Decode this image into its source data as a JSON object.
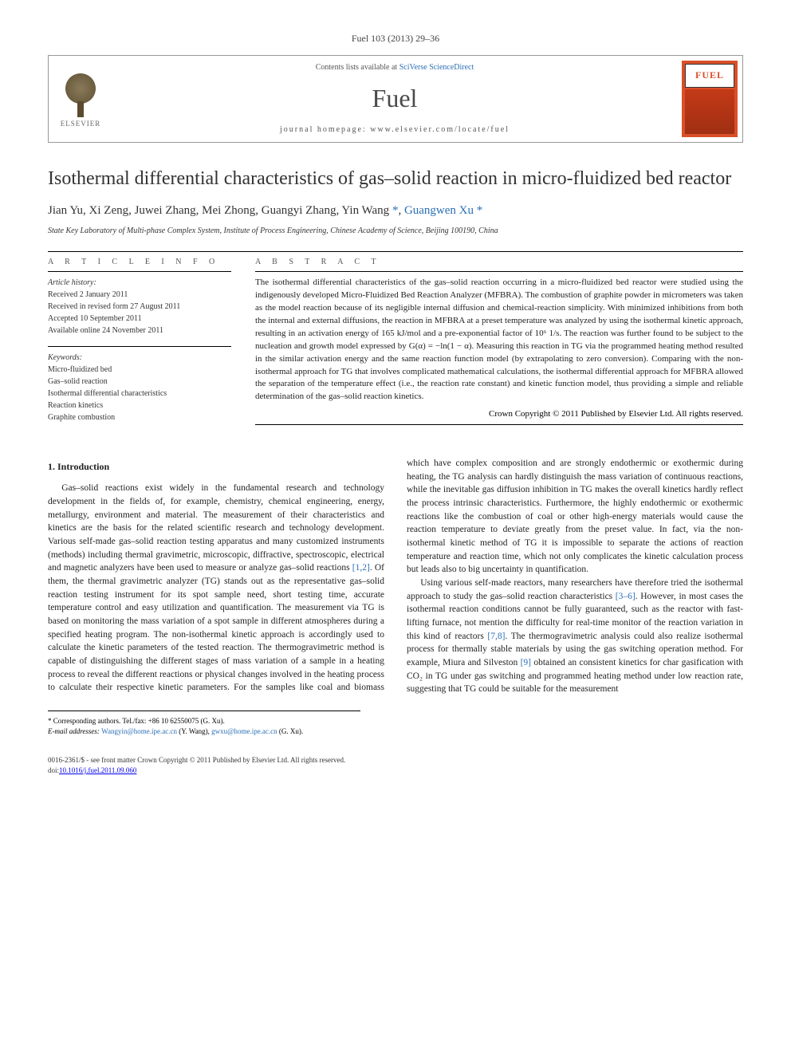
{
  "journal_ref": "Fuel 103 (2013) 29–36",
  "header": {
    "contents_prefix": "Contents lists available at ",
    "contents_link": "SciVerse ScienceDirect",
    "journal_name": "Fuel",
    "homepage_prefix": "journal homepage: ",
    "homepage_url": "www.elsevier.com/locate/fuel",
    "publisher": "ELSEVIER",
    "cover_label": "FUEL"
  },
  "title": "Isothermal differential characteristics of gas–solid reaction in micro-fluidized bed reactor",
  "authors": "Jian Yu, Xi Zeng, Juwei Zhang, Mei Zhong, Guangyi Zhang, Yin Wang *, Guangwen Xu *",
  "affiliation": "State Key Laboratory of Multi-phase Complex System, Institute of Process Engineering, Chinese Academy of Science, Beijing 100190, China",
  "info": {
    "heading_info": "A R T I C L E   I N F O",
    "heading_abstract": "A B S T R A C T",
    "history_label": "Article history:",
    "history": [
      "Received 2 January 2011",
      "Received in revised form 27 August 2011",
      "Accepted 10 September 2011",
      "Available online 24 November 2011"
    ],
    "keywords_label": "Keywords:",
    "keywords": [
      "Micro-fluidized bed",
      "Gas–solid reaction",
      "Isothermal differential characteristics",
      "Reaction kinetics",
      "Graphite combustion"
    ]
  },
  "abstract": "The isothermal differential characteristics of the gas–solid reaction occurring in a micro-fluidized bed reactor were studied using the indigenously developed Micro-Fluidized Bed Reaction Analyzer (MFBRA). The combustion of graphite powder in micrometers was taken as the model reaction because of its negligible internal diffusion and chemical-reaction simplicity. With minimized inhibitions from both the internal and external diffusions, the reaction in MFBRA at a preset temperature was analyzed by using the isothermal kinetic approach, resulting in an activation energy of 165 kJ/mol and a pre-exponential factor of 10⁶ 1/s. The reaction was further found to be subject to the nucleation and growth model expressed by G(α) = −ln(1 − α). Measuring this reaction in TG via the programmed heating method resulted in the similar activation energy and the same reaction function model (by extrapolating to zero conversion). Comparing with the non-isothermal approach for TG that involves complicated mathematical calculations, the isothermal differential approach for MFBRA allowed the separation of the temperature effect (i.e., the reaction rate constant) and kinetic function model, thus providing a simple and reliable determination of the gas–solid reaction kinetics.",
  "copyright_abstract": "Crown Copyright © 2011 Published by Elsevier Ltd. All rights reserved.",
  "section1": {
    "heading": "1. Introduction",
    "p1": "Gas–solid reactions exist widely in the fundamental research and technology development in the fields of, for example, chemistry, chemical engineering, energy, metallurgy, environment and material. The measurement of their characteristics and kinetics are the basis for the related scientific research and technology development. Various self-made gas–solid reaction testing apparatus and many customized instruments (methods) including thermal gravimetric, microscopic, diffractive, spectroscopic, electrical and magnetic analyzers have been used to measure or analyze gas–solid reactions ",
    "p1_ref": "[1,2]",
    "p1_tail": ". Of them, the thermal gravimetric analyzer (TG) stands out as the representative gas–solid reaction testing instrument for its spot sample need, short testing time, accurate temperature control and easy utilization and quantification. The measurement via TG is based on monitoring the mass variation of a spot sample in different atmospheres during a specified heating program. The non-isothermal kinetic approach is accordingly used to calculate the kinetic parameters of the tested reaction. The thermogravimetric method is capable of distinguishing the different stages of mass variation of a sample in a heating process to reveal the different reactions or physical changes in",
    "p2": "volved in the heating process to calculate their respective kinetic parameters. For the samples like coal and biomass which have complex composition and are strongly endothermic or exothermic during heating, the TG analysis can hardly distinguish the mass variation of continuous reactions, while the inevitable gas diffusion inhibition in TG makes the overall kinetics hardly reflect the process intrinsic characteristics. Furthermore, the highly endothermic or exothermic reactions like the combustion of coal or other high-energy materials would cause the reaction temperature to deviate greatly from the preset value. In fact, via the non-isothermal kinetic method of TG it is impossible to separate the actions of reaction temperature and reaction time, which not only complicates the kinetic calculation process but leads also to big uncertainty in quantification.",
    "p3a": "Using various self-made reactors, many researchers have therefore tried the isothermal approach to study the gas–solid reaction characteristics ",
    "p3_ref1": "[3–6]",
    "p3b": ". However, in most cases the isothermal reaction conditions cannot be fully guaranteed, such as the reactor with fast-lifting furnace, not mention the difficulty for real-time monitor of the reaction variation in this kind of reactors ",
    "p3_ref2": "[7,8]",
    "p3c": ". The thermogravimetric analysis could also realize isothermal process for thermally stable materials by using the gas switching operation method. For example, Miura and Silveston ",
    "p3_ref3": "[9]",
    "p3d": " obtained an consistent kinetics for char gasification with CO₂ in TG under gas switching and programmed heating method under low reaction rate, suggesting that TG could be suitable for the measurement"
  },
  "footnotes": {
    "corr": "* Corresponding authors. Tel./fax: +86 10 62550075 (G. Xu).",
    "email_label": "E-mail addresses: ",
    "email1": "Wangyin@home.ipe.ac.cn",
    "email1_who": " (Y. Wang), ",
    "email2": "gwxu@home.ipe.ac.cn",
    "email2_who": " (G. Xu)."
  },
  "bottom": {
    "issn": "0016-2361/$ - see front matter Crown Copyright © 2011 Published by Elsevier Ltd. All rights reserved.",
    "doi": "doi:10.1016/j.fuel.2011.09.060"
  }
}
